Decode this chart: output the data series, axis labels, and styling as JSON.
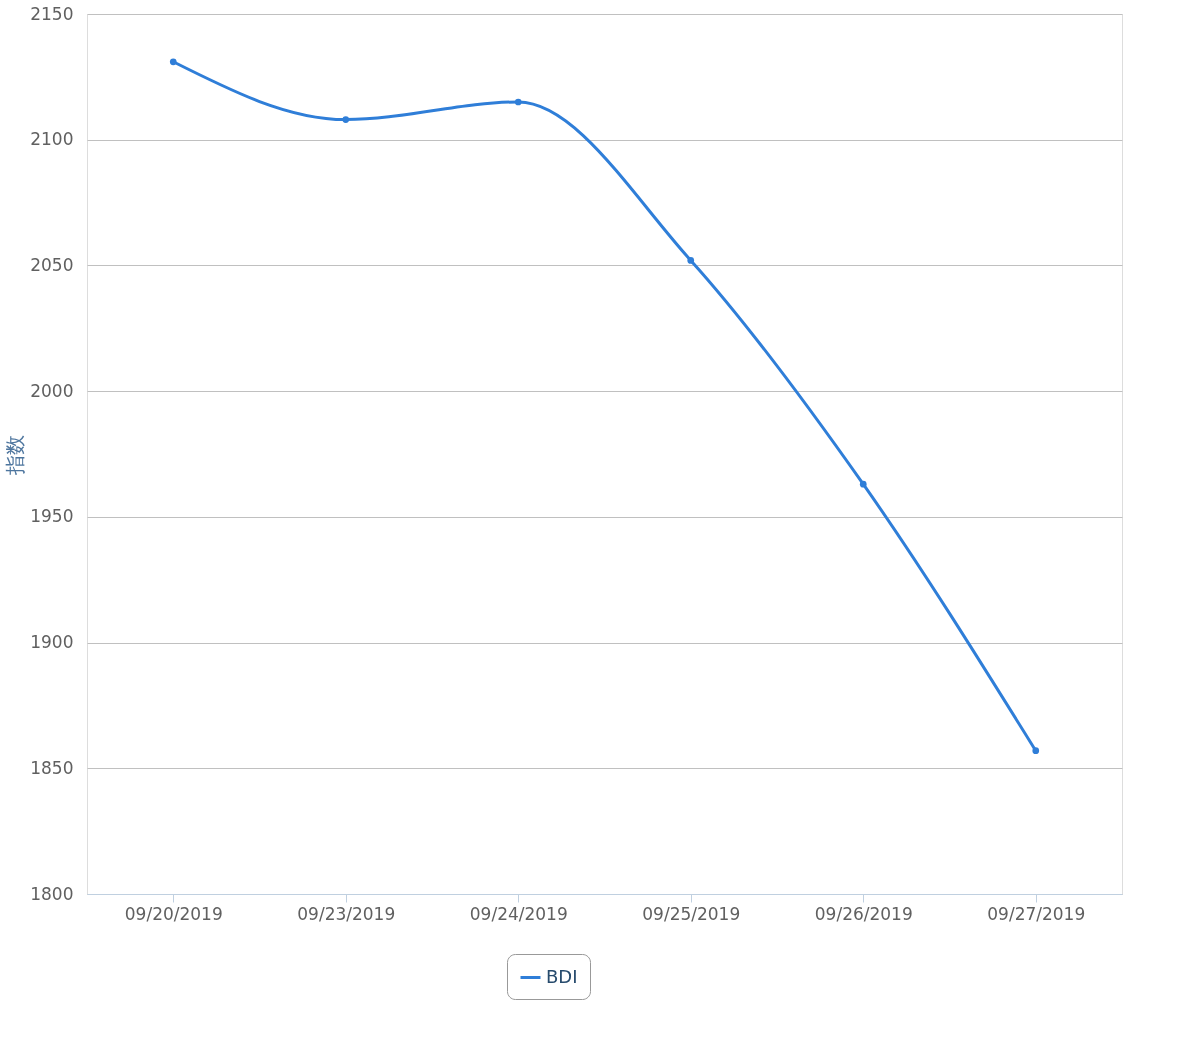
{
  "chart_data": {
    "type": "line",
    "ylabel": "指数",
    "categories": [
      "09/20/2019",
      "09/23/2019",
      "09/24/2019",
      "09/25/2019",
      "09/26/2019",
      "09/27/2019"
    ],
    "series": [
      {
        "name": "BDI",
        "color": "#2f7ed8",
        "values": [
          2131,
          2108,
          2115,
          2052,
          1963,
          1857
        ]
      }
    ],
    "ylim": [
      1800,
      2150
    ],
    "yticks": [
      1800,
      1850,
      1900,
      1950,
      2000,
      2050,
      2100,
      2150
    ],
    "grid": "y",
    "legend": "bottom",
    "marker": "circle",
    "line_style": "solid"
  }
}
